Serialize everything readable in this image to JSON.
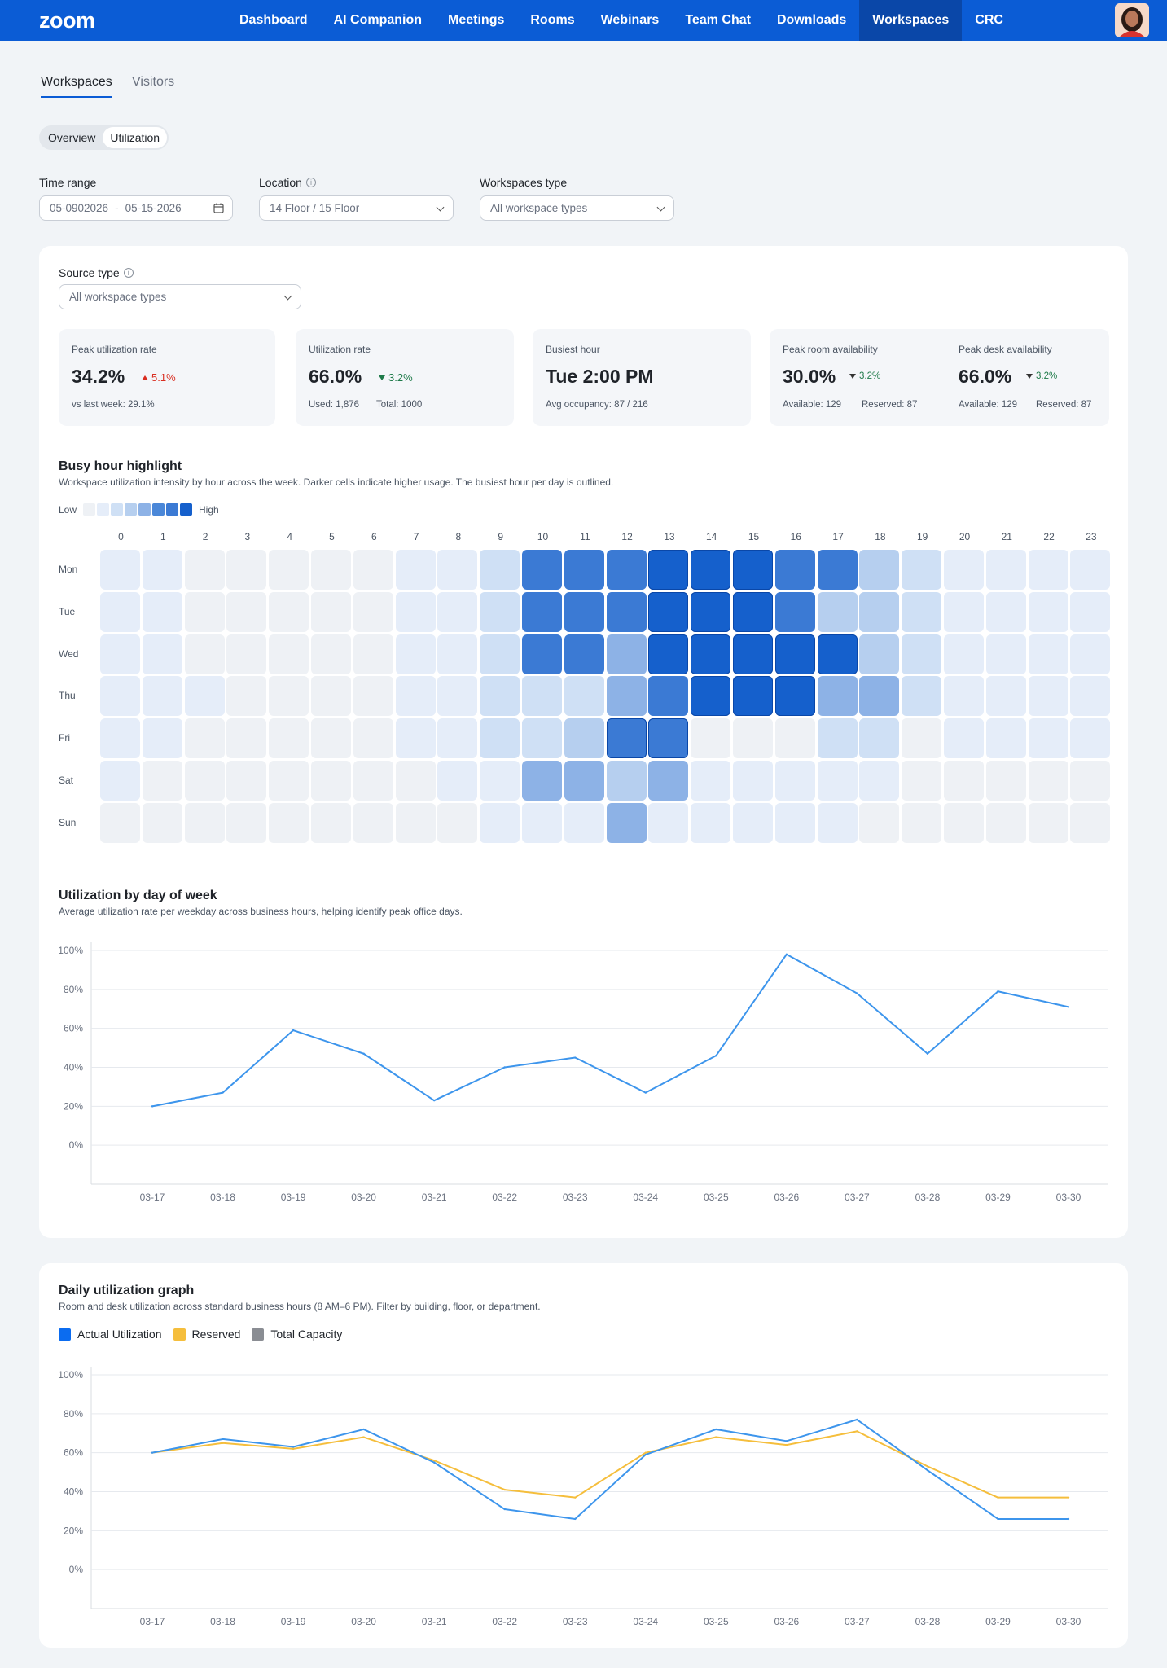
{
  "nav": {
    "logo": "zoom",
    "items": [
      "Dashboard",
      "AI Companion",
      "Meetings",
      "Rooms",
      "Webinars",
      "Team Chat",
      "Downloads",
      "Workspaces",
      "CRC"
    ],
    "active_index": 7
  },
  "tabs": {
    "items": [
      "Workspaces",
      "Visitors"
    ],
    "active_index": 0
  },
  "segmented": {
    "items": [
      "Overview",
      "Utilization"
    ],
    "active_index": 1
  },
  "filters": {
    "time_range": {
      "label": "Time range",
      "start": "05-0902026",
      "separator": "-",
      "end": "05-15-2026"
    },
    "location": {
      "label": "Location",
      "value": "14 Floor / 15 Floor"
    },
    "workspace_type": {
      "label": "Workspaces type",
      "value": "All workspace types"
    }
  },
  "source_type": {
    "label": "Source type",
    "value": "All workspace types"
  },
  "kpis": {
    "peak_utilization": {
      "label": "Peak utilization rate",
      "value": "34.2%",
      "delta": "5.1%",
      "sub": "vs last week: 29.1%"
    },
    "utilization_rate": {
      "label": "Utilization rate",
      "value": "66.0%",
      "delta": "3.2%",
      "used": "Used: 1,876",
      "total": "Total: 1000"
    },
    "busiest_hour": {
      "label": "Busiest hour",
      "value": "Tue 2:00 PM",
      "sub": "Avg occupancy: 87 / 216"
    },
    "peak_room": {
      "label": "Peak room availability",
      "value": "30.0%",
      "delta": "3.2%",
      "available": "Available: 129",
      "reserved": "Reserved: 87"
    },
    "peak_desk": {
      "label": "Peak desk availability",
      "value": "66.0%",
      "delta": "3.2%",
      "available": "Available: 129",
      "reserved": "Reserved: 87"
    }
  },
  "heatmap": {
    "title": "Busy hour highlight",
    "subtitle": "Workspace utilization intensity by hour across the week. Darker cells indicate higher usage. The busiest hour per day is outlined.",
    "legend_low": "Low",
    "legend_high": "High",
    "palette": [
      "#eef1f5",
      "#e5edf9",
      "#cfe0f5",
      "#b6cfef",
      "#8db2e6",
      "#4a87d8",
      "#3b7ad4",
      "#1560cc"
    ],
    "hours": [
      "0",
      "1",
      "2",
      "3",
      "4",
      "5",
      "6",
      "7",
      "8",
      "9",
      "10",
      "11",
      "12",
      "13",
      "14",
      "15",
      "16",
      "17",
      "18",
      "19",
      "20",
      "21",
      "22",
      "23"
    ],
    "days": [
      "Mon",
      "Tue",
      "Wed",
      "Thu",
      "Fri",
      "Sat",
      "Sun"
    ],
    "levels": [
      [
        1,
        1,
        0,
        0,
        0,
        0,
        0,
        1,
        1,
        2,
        6,
        6,
        6,
        7,
        7,
        7,
        6,
        6,
        3,
        2,
        1,
        1,
        1,
        1
      ],
      [
        1,
        1,
        0,
        0,
        0,
        0,
        0,
        1,
        1,
        2,
        6,
        6,
        6,
        7,
        7,
        7,
        6,
        3,
        3,
        2,
        1,
        1,
        1,
        1
      ],
      [
        1,
        1,
        0,
        0,
        0,
        0,
        0,
        1,
        1,
        2,
        6,
        6,
        4,
        7,
        7,
        7,
        7,
        7,
        3,
        2,
        1,
        1,
        1,
        1
      ],
      [
        1,
        1,
        1,
        0,
        0,
        0,
        0,
        1,
        1,
        2,
        2,
        2,
        4,
        6,
        7,
        7,
        7,
        4,
        4,
        2,
        1,
        1,
        1,
        1
      ],
      [
        1,
        1,
        0,
        0,
        0,
        0,
        0,
        1,
        1,
        2,
        2,
        3,
        6,
        6,
        0,
        0,
        0,
        2,
        2,
        0,
        1,
        1,
        1,
        1
      ],
      [
        1,
        0,
        0,
        0,
        0,
        0,
        0,
        0,
        1,
        1,
        4,
        4,
        3,
        4,
        1,
        1,
        1,
        1,
        1,
        0,
        0,
        0,
        0,
        0
      ],
      [
        0,
        0,
        0,
        0,
        0,
        0,
        0,
        0,
        0,
        1,
        1,
        1,
        4,
        1,
        1,
        1,
        1,
        1,
        0,
        0,
        0,
        0,
        0,
        0
      ]
    ]
  },
  "day_chart": {
    "title": "Utilization by day of week",
    "subtitle": "Average utilization rate per weekday across business hours, helping identify peak office days."
  },
  "daily_chart": {
    "title": "Daily utilization graph",
    "subtitle": "Room and desk utilization across standard business hours (8 AM–6 PM). Filter by building, floor, or department.",
    "legend": [
      {
        "name": "Actual Utilization",
        "color": "#0b6cf0"
      },
      {
        "name": "Reserved",
        "color": "#f5be3c"
      },
      {
        "name": "Total Capacity",
        "color": "#8a8d93"
      }
    ]
  },
  "chart_data": [
    {
      "type": "line",
      "x": [
        "03-17",
        "03-18",
        "03-19",
        "03-20",
        "03-21",
        "03-22",
        "03-23",
        "03-24",
        "03-25",
        "03-26",
        "03-27",
        "03-28",
        "03-29",
        "03-30"
      ],
      "series": [
        {
          "values": [
            20,
            27,
            59,
            47,
            23,
            40,
            45,
            27,
            46,
            98,
            78,
            47,
            79,
            71
          ],
          "color": "#3d95ec"
        }
      ],
      "yticks": [
        "0%",
        "20%",
        "40%",
        "60%",
        "80%",
        "100%"
      ],
      "ylim": [
        -20,
        100
      ],
      "grid": true
    },
    {
      "type": "line",
      "x": [
        "03-17",
        "03-18",
        "03-19",
        "03-20",
        "03-21",
        "03-22",
        "03-23",
        "03-24",
        "03-25",
        "03-26",
        "03-27",
        "03-28",
        "03-29",
        "03-30"
      ],
      "series": [
        {
          "name": "Actual Utilization",
          "values": [
            60,
            67,
            63,
            72,
            55,
            31,
            26,
            59,
            72,
            66,
            77,
            51,
            26,
            26
          ],
          "color": "#3d95ec"
        },
        {
          "name": "Reserved",
          "values": [
            60,
            65,
            62,
            68,
            56,
            41,
            37,
            60,
            68,
            64,
            71,
            53,
            37,
            37
          ],
          "color": "#f5be3c"
        }
      ],
      "yticks": [
        "0%",
        "20%",
        "40%",
        "60%",
        "80%",
        "100%"
      ],
      "ylim": [
        -20,
        100
      ],
      "grid": true,
      "legend": "top-left"
    }
  ]
}
